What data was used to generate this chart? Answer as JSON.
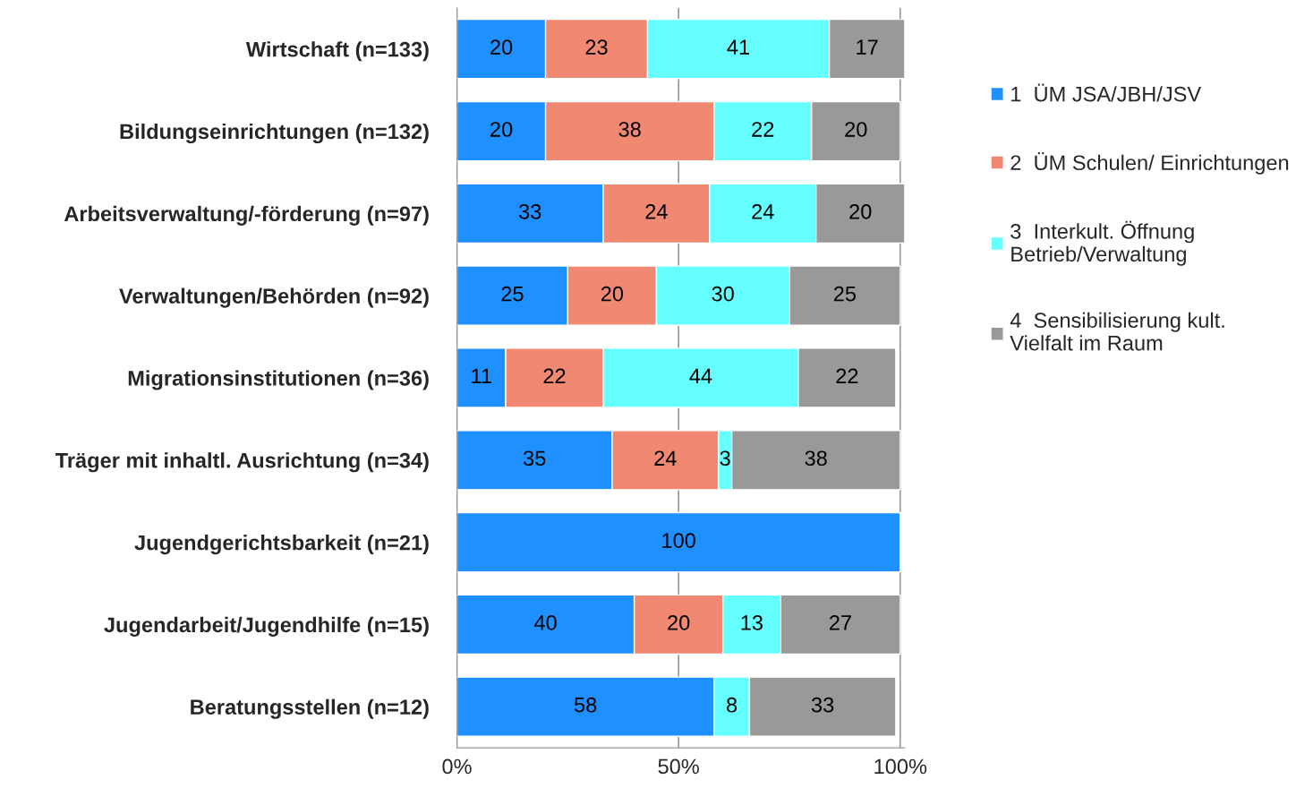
{
  "chart_data": {
    "type": "bar",
    "orientation": "horizontal",
    "stacked": true,
    "data_labels": true,
    "categories": [
      "Wirtschaft (n=133)",
      "Bildungseinrichtungen (n=132)",
      "Arbeitsverwaltung/-förderung (n=97)",
      "Verwaltungen/Behörden (n=92)",
      "Migrationsinstitutionen (n=36)",
      "Träger mit inhaltl. Ausrichtung (n=34)",
      "Jugendgerichtsbarkeit (n=21)",
      "Jugendarbeit/Jugendhilfe (n=15)",
      "Beratungsstellen (n=12)"
    ],
    "series": [
      {
        "name": "1  ÜM JSA/JBH/JSV",
        "color": "#1e90ff",
        "values": [
          20,
          20,
          33,
          25,
          11,
          35,
          100,
          40,
          58
        ]
      },
      {
        "name": "2  ÜM Schulen/ Einrichtungen",
        "color": "#f08872",
        "values": [
          23,
          38,
          24,
          20,
          22,
          24,
          null,
          20,
          null
        ]
      },
      {
        "name": "3  Interkult. Öffnung\nBetrieb/Verwaltung",
        "color": "#66ffff",
        "values": [
          41,
          22,
          24,
          30,
          44,
          3,
          null,
          13,
          8
        ]
      },
      {
        "name": "4  Sensibilisierung kult.\nVielfalt im Raum",
        "color": "#999999",
        "values": [
          17,
          20,
          20,
          25,
          22,
          38,
          null,
          27,
          33
        ]
      }
    ],
    "xlim": [
      0,
      101
    ],
    "xticks": [
      {
        "value": 0,
        "label": "0%"
      },
      {
        "value": 50,
        "label": "50%"
      },
      {
        "value": 100,
        "label": "100%"
      }
    ],
    "grid": "x",
    "legend": "right"
  }
}
